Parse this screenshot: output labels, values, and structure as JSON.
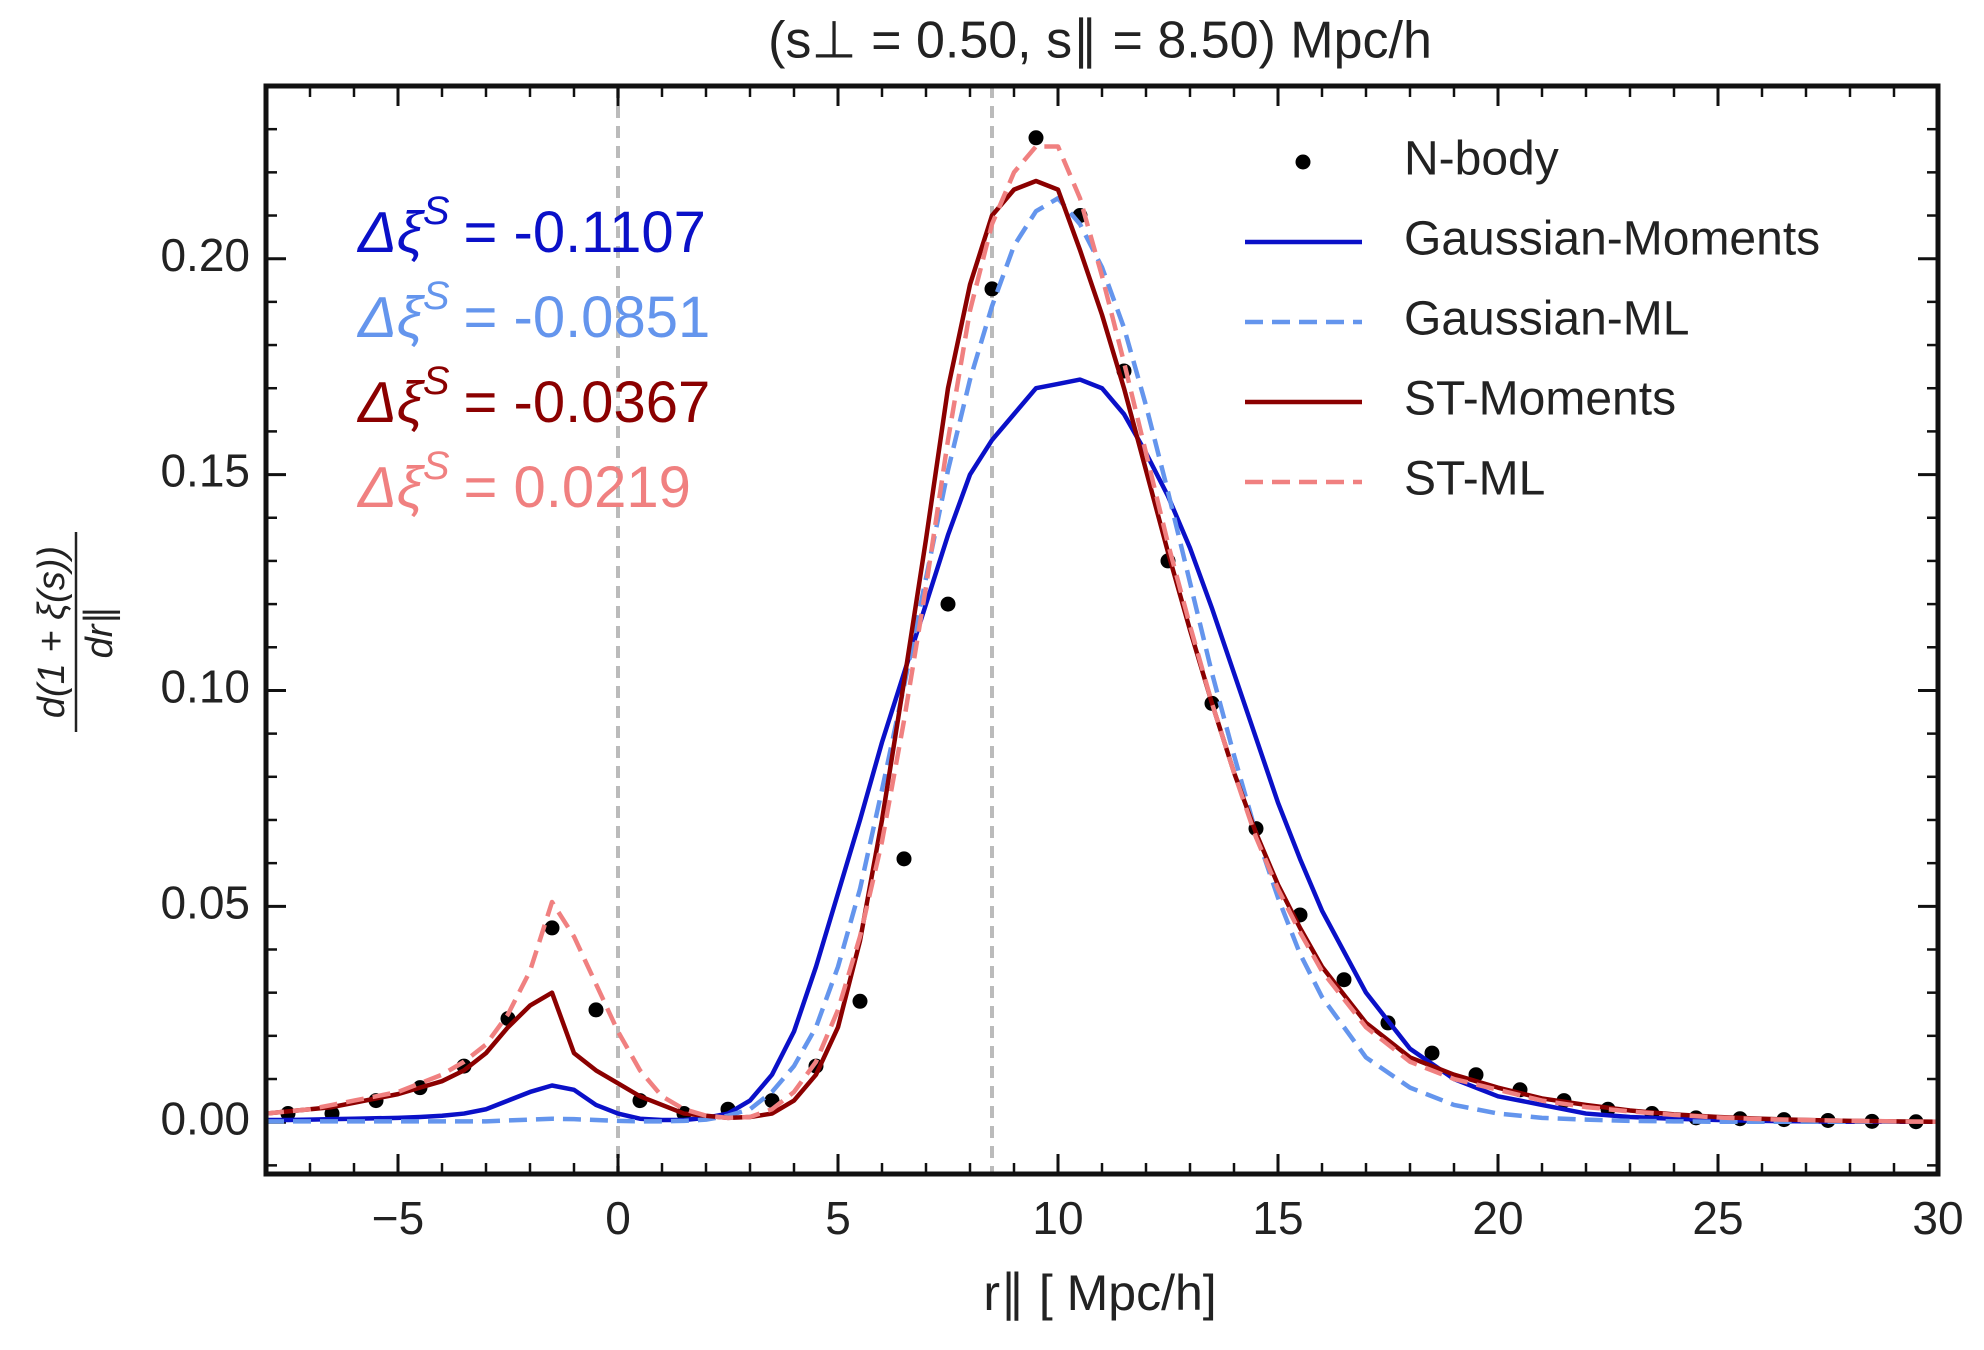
{
  "chart_data": {
    "type": "line",
    "title": "(s⊥ = 0.50, s∥ = 8.50) Mpc/h",
    "xlabel": "r∥  [ Mpc/h]",
    "ylabel": {
      "numerator": "d(1 + ξ(s))",
      "denominator": "dr∥"
    },
    "xlim": [
      -8,
      30
    ],
    "ylim": [
      -0.012,
      0.24
    ],
    "xticks": [
      {
        "value": -5,
        "label": "−5"
      },
      0,
      5,
      10,
      15,
      20,
      25,
      30
    ],
    "yticks": [
      {
        "value": 0,
        "label": "0.00"
      },
      0.05,
      {
        "value": 0.1,
        "label": "0.10"
      },
      {
        "value": 0.15,
        "label": "0.15"
      },
      {
        "value": 0.2,
        "label": "0.20"
      }
    ],
    "xminorticks": [
      -8,
      -7,
      -6,
      -4,
      -3,
      -2,
      -1,
      1,
      2,
      3,
      4,
      6,
      7,
      8,
      9,
      11,
      12,
      13,
      14,
      16,
      17,
      18,
      19,
      21,
      22,
      23,
      24,
      26,
      27,
      28,
      29
    ],
    "yminorticks": [
      -0.01,
      0.01,
      0.02,
      0.03,
      0.04,
      0.06,
      0.07,
      0.08,
      0.09,
      0.11,
      0.12,
      0.13,
      0.14,
      0.16,
      0.17,
      0.18,
      0.19,
      0.21,
      0.22,
      0.23
    ],
    "vlines": [
      0,
      8.5
    ],
    "legend": "upper right",
    "x": [
      -8,
      -7.5,
      -7,
      -6.5,
      -6,
      -5.5,
      -5,
      -4.5,
      -4,
      -3.5,
      -3,
      -2.5,
      -2,
      -1.5,
      -1,
      -0.5,
      0,
      0.5,
      1,
      1.5,
      2,
      2.5,
      3,
      3.5,
      4,
      4.5,
      5,
      5.5,
      6,
      6.5,
      7,
      7.5,
      8,
      8.5,
      9,
      9.5,
      10,
      10.5,
      11,
      11.5,
      12,
      12.5,
      13,
      13.5,
      14,
      14.5,
      15,
      15.5,
      16,
      17,
      18,
      19,
      20,
      21,
      22,
      23,
      24,
      25,
      26,
      27,
      28,
      29,
      30
    ],
    "series": [
      {
        "name": "N-body",
        "type": "scatter",
        "color": "#000000",
        "x": [
          -7.5,
          -6.5,
          -5.5,
          -4.5,
          -3.5,
          -2.5,
          -1.5,
          -0.5,
          0.5,
          1.5,
          2.5,
          3.5,
          4.5,
          5.5,
          6.5,
          7.5,
          8.5,
          9.5,
          10.5,
          11.5,
          12.5,
          13.5,
          14.5,
          15.5,
          16.5,
          17.5,
          18.5,
          19.5,
          20.5,
          21.5,
          22.5,
          23.5,
          24.5,
          25.5,
          26.5,
          27.5,
          28.5,
          29.5
        ],
        "values": [
          0.002,
          0.002,
          0.005,
          0.008,
          0.013,
          0.024,
          0.045,
          0.026,
          0.005,
          0.002,
          0.003,
          0.005,
          0.013,
          0.028,
          0.061,
          0.12,
          0.193,
          0.228,
          0.21,
          0.174,
          0.13,
          0.097,
          0.068,
          0.048,
          0.033,
          0.023,
          0.016,
          0.011,
          0.0075,
          0.005,
          0.003,
          0.002,
          0.001,
          0.0008,
          0.0006,
          0.0004,
          0.0002,
          0.0001
        ]
      },
      {
        "name": "Gaussian-Moments",
        "type": "line",
        "color": "#0a10c8",
        "dashed": false,
        "values": [
          0.0005,
          0.0005,
          0.0006,
          0.0007,
          0.0008,
          0.0009,
          0.001,
          0.0012,
          0.0015,
          0.002,
          0.003,
          0.005,
          0.007,
          0.0085,
          0.0075,
          0.004,
          0.002,
          0.0008,
          0.0005,
          0.0005,
          0.001,
          0.002,
          0.005,
          0.011,
          0.021,
          0.036,
          0.053,
          0.07,
          0.088,
          0.104,
          0.12,
          0.136,
          0.15,
          0.158,
          0.164,
          0.17,
          0.171,
          0.172,
          0.17,
          0.164,
          0.155,
          0.145,
          0.133,
          0.119,
          0.104,
          0.089,
          0.074,
          0.061,
          0.049,
          0.03,
          0.017,
          0.01,
          0.006,
          0.004,
          0.002,
          0.0012,
          0.0008,
          0.0005,
          0.0003,
          0.0002,
          0.0001,
          0.0001,
          0.0001
        ]
      },
      {
        "name": "Gaussian-ML",
        "type": "line",
        "color": "#6495ed",
        "dashed": true,
        "values": [
          0.0002,
          0.0002,
          0.0002,
          0.0002,
          0.0002,
          0.0002,
          0.0002,
          0.0002,
          0.0002,
          0.0002,
          0.0002,
          0.0004,
          0.0006,
          0.0008,
          0.0007,
          0.0005,
          0.0003,
          0.0002,
          0.0002,
          0.0003,
          0.0006,
          0.0015,
          0.003,
          0.007,
          0.013,
          0.022,
          0.036,
          0.054,
          0.077,
          0.101,
          0.126,
          0.151,
          0.172,
          0.189,
          0.203,
          0.211,
          0.214,
          0.208,
          0.198,
          0.184,
          0.166,
          0.146,
          0.125,
          0.104,
          0.085,
          0.067,
          0.052,
          0.039,
          0.029,
          0.015,
          0.008,
          0.004,
          0.002,
          0.001,
          0.0006,
          0.0003,
          0.0002,
          0.0001,
          0.0001,
          0.0001,
          0.0001,
          0.0001,
          0.0001
        ]
      },
      {
        "name": "ST-Moments",
        "type": "line",
        "color": "#8b0000",
        "dashed": false,
        "values": [
          0.002,
          0.0025,
          0.003,
          0.0035,
          0.0045,
          0.0055,
          0.0065,
          0.008,
          0.0095,
          0.012,
          0.016,
          0.022,
          0.027,
          0.03,
          0.016,
          0.012,
          0.009,
          0.006,
          0.004,
          0.002,
          0.0015,
          0.001,
          0.0012,
          0.002,
          0.005,
          0.011,
          0.022,
          0.042,
          0.07,
          0.102,
          0.135,
          0.17,
          0.194,
          0.21,
          0.216,
          0.218,
          0.216,
          0.202,
          0.187,
          0.17,
          0.151,
          0.132,
          0.114,
          0.097,
          0.081,
          0.067,
          0.055,
          0.045,
          0.036,
          0.023,
          0.015,
          0.011,
          0.008,
          0.0055,
          0.004,
          0.0027,
          0.0018,
          0.0012,
          0.0008,
          0.0005,
          0.0003,
          0.0002,
          0.0001
        ]
      },
      {
        "name": "ST-ML",
        "type": "line",
        "color": "#f08080",
        "dashed": true,
        "values": [
          0.002,
          0.0025,
          0.003,
          0.004,
          0.005,
          0.006,
          0.007,
          0.009,
          0.011,
          0.014,
          0.018,
          0.025,
          0.035,
          0.051,
          0.043,
          0.032,
          0.021,
          0.012,
          0.006,
          0.003,
          0.0015,
          0.001,
          0.0012,
          0.003,
          0.007,
          0.014,
          0.026,
          0.043,
          0.065,
          0.093,
          0.124,
          0.158,
          0.188,
          0.208,
          0.22,
          0.226,
          0.226,
          0.214,
          0.196,
          0.176,
          0.155,
          0.134,
          0.115,
          0.097,
          0.081,
          0.066,
          0.054,
          0.044,
          0.035,
          0.022,
          0.014,
          0.01,
          0.0075,
          0.005,
          0.0035,
          0.0025,
          0.0017,
          0.0011,
          0.0007,
          0.0005,
          0.0003,
          0.0002,
          0.0001
        ]
      }
    ],
    "annotations": [
      {
        "symbol": "Δξ",
        "superscript": "S",
        "text": "= -0.1107",
        "color": "#0a10c8"
      },
      {
        "symbol": "Δξ",
        "superscript": "S",
        "text": "= -0.0851",
        "color": "#6495ed"
      },
      {
        "symbol": "Δξ",
        "superscript": "S",
        "text": "= -0.0367",
        "color": "#8b0000"
      },
      {
        "symbol": "Δξ",
        "superscript": "S",
        "text": "= 0.0219",
        "color": "#f08080"
      }
    ]
  }
}
